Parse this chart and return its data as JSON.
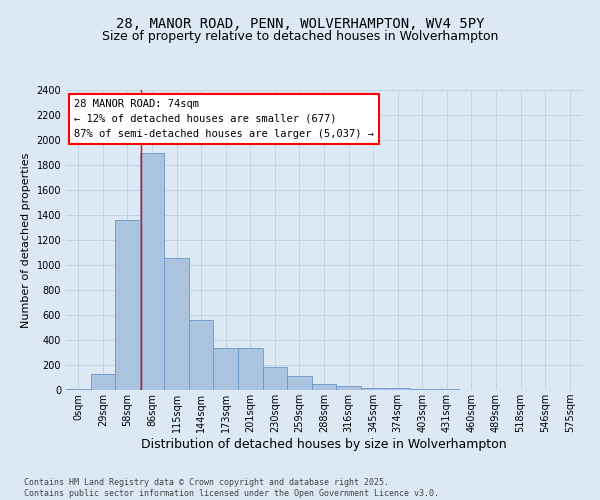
{
  "title_line1": "28, MANOR ROAD, PENN, WOLVERHAMPTON, WV4 5PY",
  "title_line2": "Size of property relative to detached houses in Wolverhampton",
  "xlabel": "Distribution of detached houses by size in Wolverhampton",
  "ylabel": "Number of detached properties",
  "categories": [
    "0sqm",
    "29sqm",
    "58sqm",
    "86sqm",
    "115sqm",
    "144sqm",
    "173sqm",
    "201sqm",
    "230sqm",
    "259sqm",
    "288sqm",
    "316sqm",
    "345sqm",
    "374sqm",
    "403sqm",
    "431sqm",
    "460sqm",
    "489sqm",
    "518sqm",
    "546sqm",
    "575sqm"
  ],
  "values": [
    10,
    130,
    1360,
    1900,
    1060,
    560,
    340,
    340,
    185,
    115,
    50,
    30,
    20,
    15,
    10,
    8,
    2,
    2,
    2,
    2,
    2
  ],
  "bar_color": "#aac4df",
  "bar_edge_color": "#6699cc",
  "bg_color": "#dce9f5",
  "grid_color": "#c0d4e8",
  "annotation_text": "28 MANOR ROAD: 74sqm\n← 12% of detached houses are smaller (677)\n87% of semi-detached houses are larger (5,037) →",
  "red_line_x": 2.55,
  "ylim": [
    0,
    2400
  ],
  "yticks": [
    0,
    200,
    400,
    600,
    800,
    1000,
    1200,
    1400,
    1600,
    1800,
    2000,
    2200,
    2400
  ],
  "title_fontsize": 10,
  "subtitle_fontsize": 9,
  "xlabel_fontsize": 9,
  "ylabel_fontsize": 8,
  "tick_fontsize": 7,
  "annot_fontsize": 7.5,
  "footer_fontsize": 6,
  "footer": "Contains HM Land Registry data © Crown copyright and database right 2025.\nContains public sector information licensed under the Open Government Licence v3.0."
}
